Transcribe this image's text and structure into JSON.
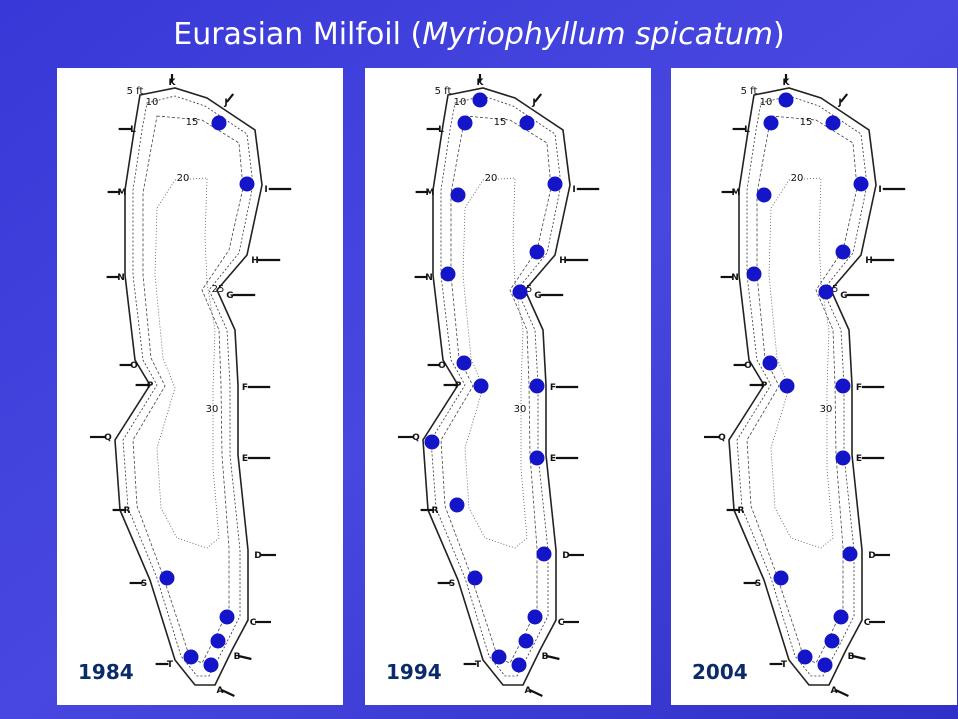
{
  "title": {
    "before": "Eurasian Milfoil (",
    "italic": "Myriophyllum spicatum",
    "after": ")"
  },
  "stations": [
    "A",
    "B",
    "C",
    "D",
    "E",
    "F",
    "G",
    "H",
    "I",
    "J",
    "K",
    "L",
    "M",
    "N",
    "O",
    "P",
    "Q",
    "R",
    "S",
    "T"
  ],
  "depth_labels": [
    "5 ft",
    "10",
    "15",
    "20",
    "25",
    "30"
  ],
  "panels": [
    {
      "year": "1984",
      "milfoil_sites": [
        "J",
        "I",
        "S",
        "C",
        "B",
        "T",
        "A"
      ]
    },
    {
      "year": "1994",
      "milfoil_sites": [
        "K",
        "L",
        "J",
        "M",
        "I",
        "H",
        "N",
        "G",
        "O",
        "P",
        "F",
        "Q",
        "E",
        "R",
        "D",
        "S",
        "C",
        "B",
        "T",
        "A"
      ]
    },
    {
      "year": "2004",
      "milfoil_sites": [
        "K",
        "L",
        "J",
        "M",
        "I",
        "H",
        "N",
        "G",
        "O",
        "P",
        "F",
        "E",
        "D",
        "S",
        "C",
        "B",
        "T",
        "A"
      ]
    }
  ]
}
